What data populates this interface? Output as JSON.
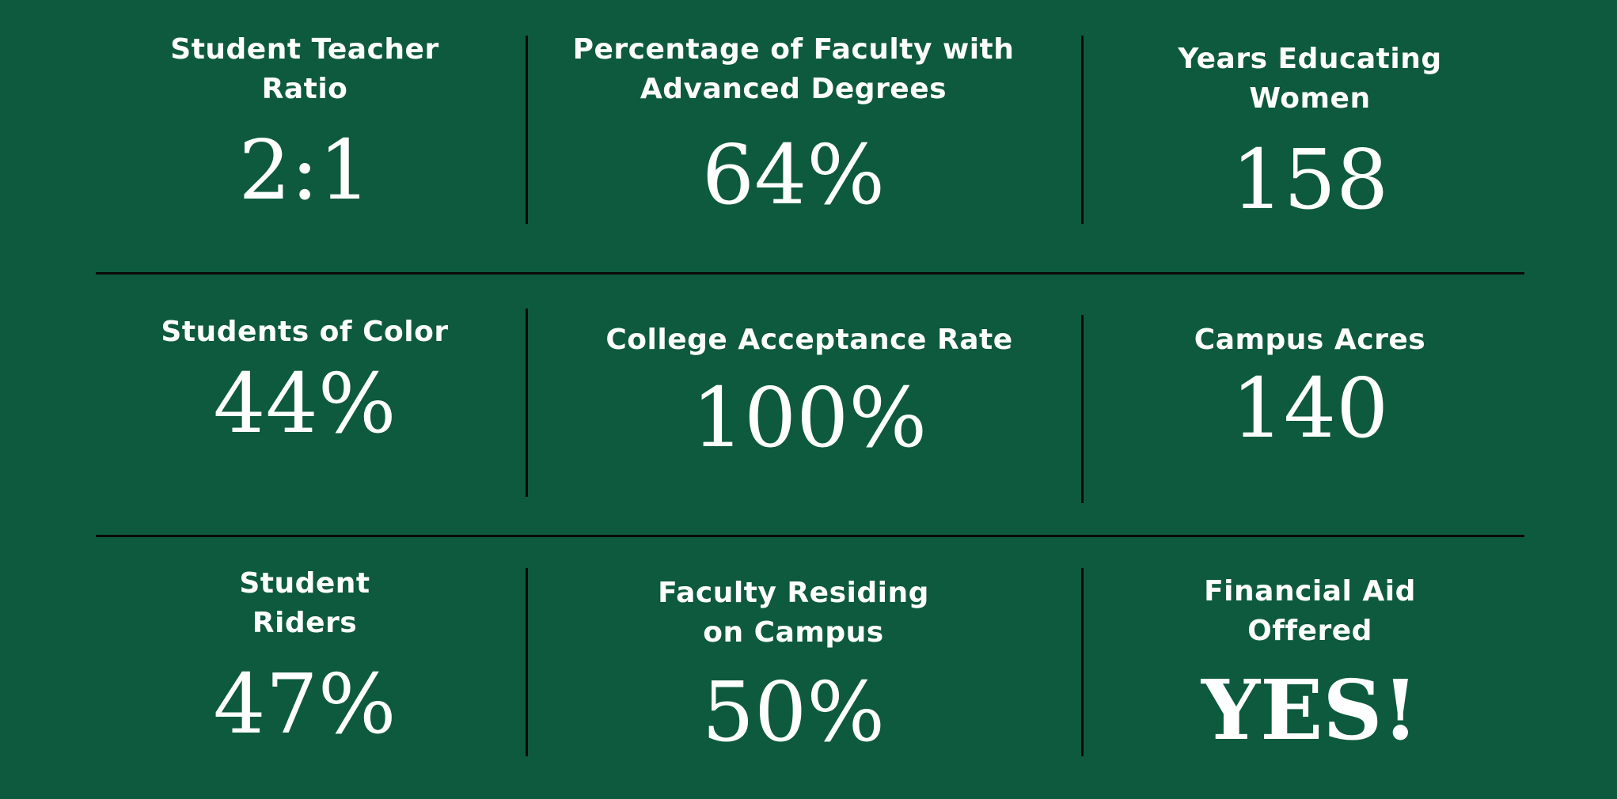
{
  "background_color": "#0e5a3e",
  "divider_color": "#0a0a0a",
  "stats": [
    {
      "label": "Student Teacher\nRatio",
      "value": "2:1"
    },
    {
      "label": "Percentage of Faculty with\nAdvanced Degrees",
      "value": "64%"
    },
    {
      "label": "Years Educating\nWomen",
      "value": "158"
    },
    {
      "label": "Students of Color",
      "value": "44%"
    },
    {
      "label": "College Acceptance Rate",
      "value": "100%"
    },
    {
      "label": "Campus Acres",
      "value": "140"
    },
    {
      "label": "Student\nRiders",
      "value": "47%"
    },
    {
      "label": "Faculty Residing\non Campus",
      "value": "50%"
    },
    {
      "label": "Financial Aid\nOffered",
      "value": "YES!"
    }
  ]
}
